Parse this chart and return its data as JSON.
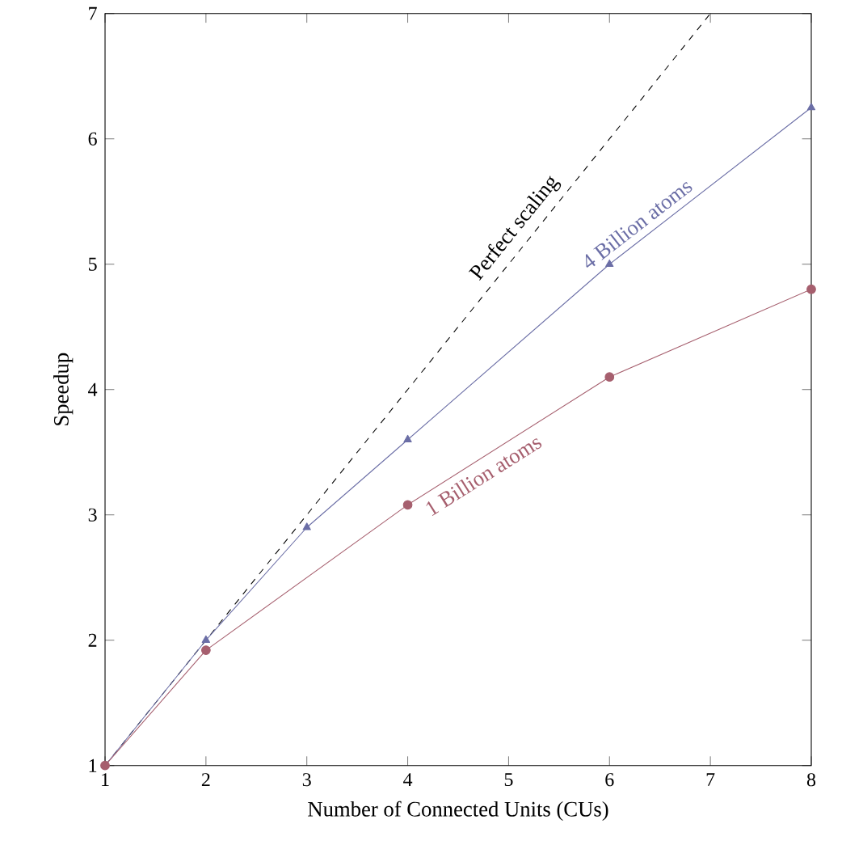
{
  "chart_data": {
    "type": "line",
    "xlabel": "Number of Connected Units (CUs)",
    "ylabel": "Speedup",
    "xlim": [
      1,
      8
    ],
    "ylim": [
      1,
      7
    ],
    "xticks": [
      1,
      2,
      3,
      4,
      5,
      6,
      7,
      8
    ],
    "yticks": [
      1,
      2,
      3,
      4,
      5,
      6,
      7
    ],
    "grid": false,
    "legend": false,
    "series": [
      {
        "name": "Perfect scaling",
        "color": "#000000",
        "line_style": "dashed",
        "marker": "none",
        "x": [
          1,
          7
        ],
        "values": [
          1,
          7
        ]
      },
      {
        "name": "4 Billion atoms",
        "color": "#6b6ea6",
        "line_style": "solid",
        "marker": "triangle",
        "x": [
          1,
          2,
          3,
          4,
          6,
          8
        ],
        "values": [
          1,
          2,
          2.9,
          3.6,
          5.0,
          6.25
        ]
      },
      {
        "name": "1 Billion atoms",
        "color": "#a65f6e",
        "line_style": "solid",
        "marker": "circle",
        "x": [
          1,
          2,
          4,
          6,
          8
        ],
        "values": [
          1,
          1.92,
          3.08,
          4.1,
          4.8
        ]
      }
    ]
  }
}
